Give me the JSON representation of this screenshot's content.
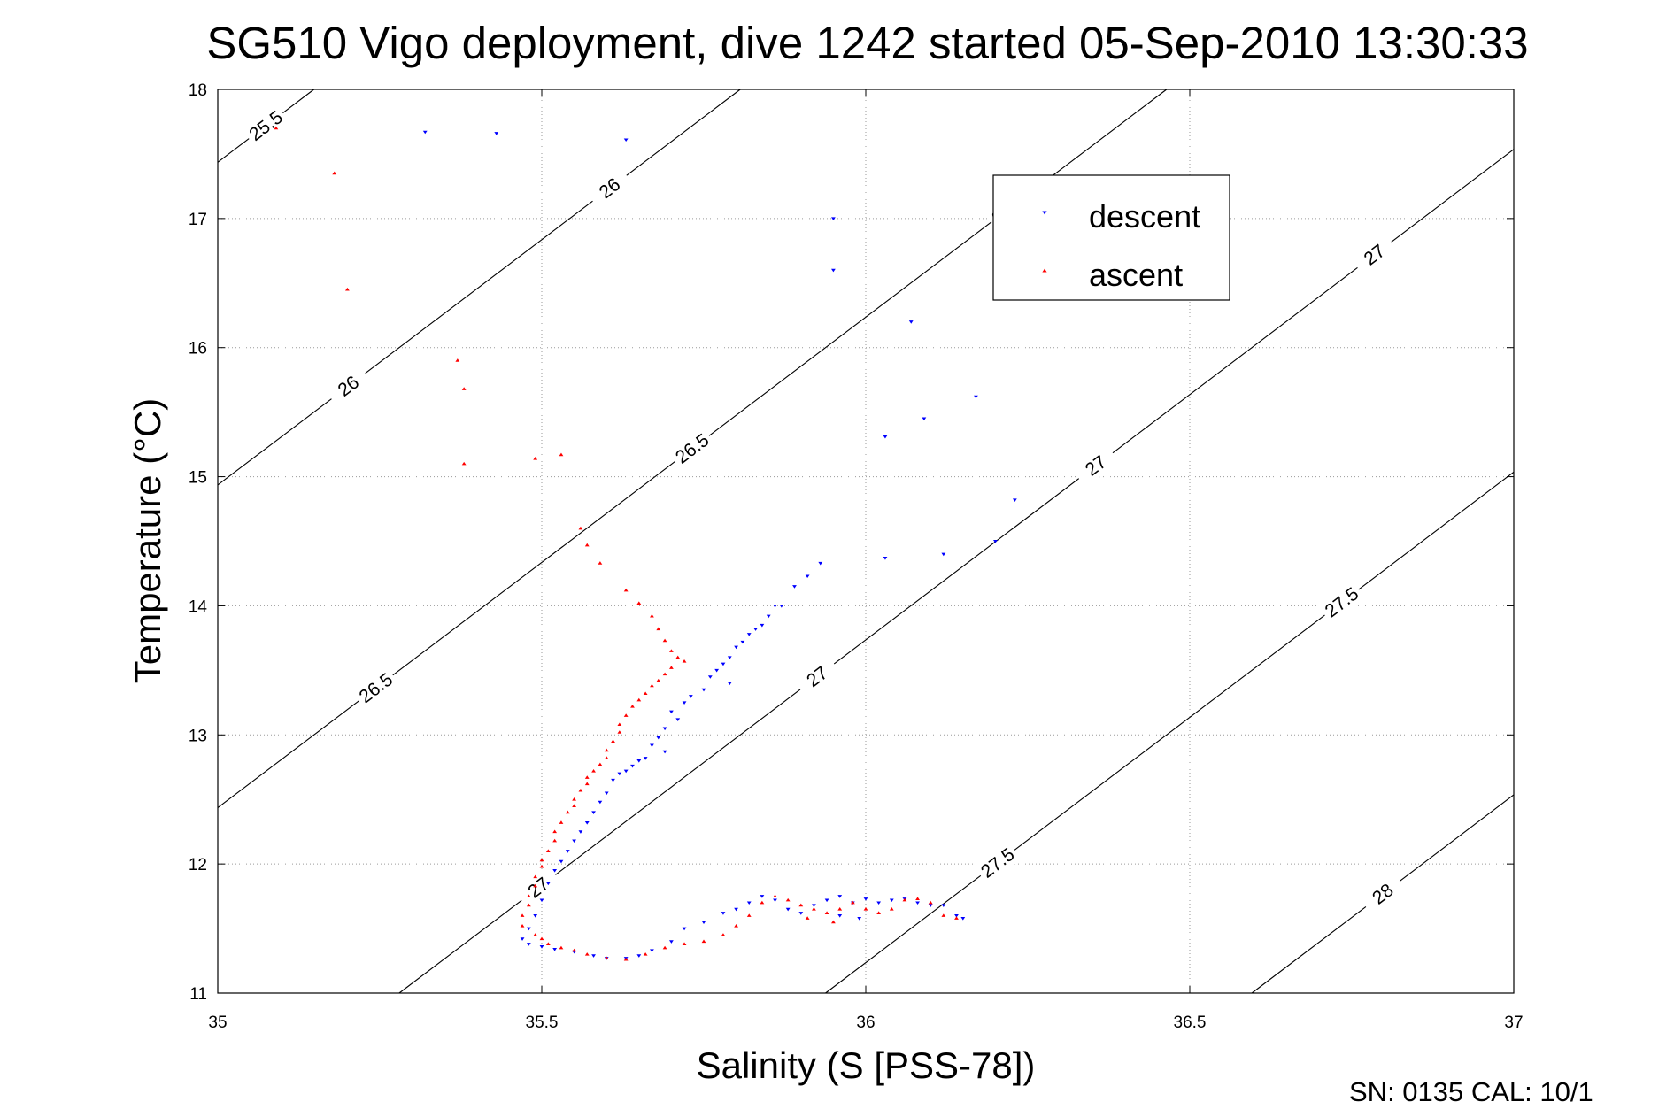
{
  "chart_data": {
    "type": "scatter",
    "title": "SG510 Vigo deployment, dive 1242 started 05-Sep-2010 13:30:33",
    "xlabel": "Salinity (S [PSS-78])",
    "ylabel": "Temperature (°C)",
    "xlim": [
      35,
      37
    ],
    "ylim": [
      11,
      18
    ],
    "xticks": [
      "35",
      "35.5",
      "36",
      "36.5",
      "37"
    ],
    "yticks": [
      "11",
      "12",
      "13",
      "14",
      "15",
      "16",
      "17",
      "18"
    ],
    "grid": true,
    "legend_position": "top-right",
    "footer": "SN: 0135  CAL: 10/1",
    "series": [
      {
        "name": "descent",
        "color": "#0000ff",
        "marker": "triangle-down",
        "points": [
          [
            35.32,
            17.67
          ],
          [
            35.43,
            17.66
          ],
          [
            35.63,
            17.61
          ],
          [
            35.95,
            17.0
          ],
          [
            35.95,
            16.6
          ],
          [
            36.07,
            16.2
          ],
          [
            36.17,
            15.62
          ],
          [
            36.09,
            15.45
          ],
          [
            36.03,
            15.31
          ],
          [
            36.23,
            14.82
          ],
          [
            36.2,
            14.5
          ],
          [
            36.12,
            14.4
          ],
          [
            36.03,
            14.37
          ],
          [
            35.93,
            14.33
          ],
          [
            35.91,
            14.23
          ],
          [
            35.89,
            14.15
          ],
          [
            35.87,
            14.0
          ],
          [
            35.86,
            14.0
          ],
          [
            35.85,
            13.92
          ],
          [
            35.84,
            13.85
          ],
          [
            35.83,
            13.82
          ],
          [
            35.82,
            13.78
          ],
          [
            35.81,
            13.72
          ],
          [
            35.8,
            13.68
          ],
          [
            35.79,
            13.6
          ],
          [
            35.78,
            13.55
          ],
          [
            35.77,
            13.5
          ],
          [
            35.76,
            13.45
          ],
          [
            35.79,
            13.4
          ],
          [
            35.75,
            13.35
          ],
          [
            35.73,
            13.3
          ],
          [
            35.72,
            13.25
          ],
          [
            35.7,
            13.18
          ],
          [
            35.71,
            13.12
          ],
          [
            35.69,
            13.05
          ],
          [
            35.68,
            12.98
          ],
          [
            35.67,
            12.92
          ],
          [
            35.69,
            12.87
          ],
          [
            35.66,
            12.82
          ],
          [
            35.65,
            12.8
          ],
          [
            35.64,
            12.76
          ],
          [
            35.63,
            12.72
          ],
          [
            35.62,
            12.7
          ],
          [
            35.61,
            12.65
          ],
          [
            35.6,
            12.55
          ],
          [
            35.59,
            12.48
          ],
          [
            35.58,
            12.4
          ],
          [
            35.57,
            12.32
          ],
          [
            35.56,
            12.25
          ],
          [
            35.55,
            12.18
          ],
          [
            35.54,
            12.1
          ],
          [
            35.53,
            12.02
          ],
          [
            35.52,
            11.95
          ],
          [
            35.51,
            11.85
          ],
          [
            35.5,
            11.72
          ],
          [
            35.49,
            11.6
          ],
          [
            35.48,
            11.5
          ],
          [
            35.47,
            11.42
          ],
          [
            35.48,
            11.38
          ],
          [
            35.5,
            11.36
          ],
          [
            35.52,
            11.34
          ],
          [
            35.55,
            11.32
          ],
          [
            35.58,
            11.29
          ],
          [
            35.6,
            11.27
          ],
          [
            35.63,
            11.27
          ],
          [
            35.65,
            11.29
          ],
          [
            35.67,
            11.33
          ],
          [
            35.7,
            11.4
          ],
          [
            35.72,
            11.5
          ],
          [
            35.75,
            11.55
          ],
          [
            35.78,
            11.62
          ],
          [
            35.8,
            11.65
          ],
          [
            35.82,
            11.7
          ],
          [
            35.84,
            11.75
          ],
          [
            35.86,
            11.72
          ],
          [
            35.88,
            11.65
          ],
          [
            35.9,
            11.62
          ],
          [
            35.92,
            11.68
          ],
          [
            35.94,
            11.72
          ],
          [
            35.96,
            11.75
          ],
          [
            35.98,
            11.7
          ],
          [
            36.0,
            11.73
          ],
          [
            36.02,
            11.7
          ],
          [
            36.04,
            11.72
          ],
          [
            36.06,
            11.73
          ],
          [
            36.08,
            11.7
          ],
          [
            36.1,
            11.68
          ],
          [
            36.12,
            11.68
          ],
          [
            36.14,
            11.6
          ],
          [
            36.15,
            11.58
          ],
          [
            35.96,
            11.6
          ],
          [
            35.99,
            11.58
          ]
        ]
      },
      {
        "name": "ascent",
        "color": "#ff0000",
        "marker": "triangle-up",
        "points": [
          [
            35.09,
            17.7
          ],
          [
            35.18,
            17.35
          ],
          [
            35.2,
            16.45
          ],
          [
            35.37,
            15.9
          ],
          [
            35.38,
            15.68
          ],
          [
            35.38,
            15.1
          ],
          [
            35.49,
            15.14
          ],
          [
            35.53,
            15.17
          ],
          [
            35.56,
            14.6
          ],
          [
            35.57,
            14.47
          ],
          [
            35.59,
            14.33
          ],
          [
            35.63,
            14.12
          ],
          [
            35.65,
            14.02
          ],
          [
            35.67,
            13.92
          ],
          [
            35.68,
            13.82
          ],
          [
            35.69,
            13.73
          ],
          [
            35.7,
            13.65
          ],
          [
            35.71,
            13.6
          ],
          [
            35.72,
            13.57
          ],
          [
            35.7,
            13.52
          ],
          [
            35.69,
            13.47
          ],
          [
            35.68,
            13.42
          ],
          [
            35.67,
            13.38
          ],
          [
            35.66,
            13.32
          ],
          [
            35.65,
            13.27
          ],
          [
            35.64,
            13.22
          ],
          [
            35.63,
            13.15
          ],
          [
            35.62,
            13.08
          ],
          [
            35.62,
            13.02
          ],
          [
            35.61,
            12.95
          ],
          [
            35.6,
            12.88
          ],
          [
            35.6,
            12.82
          ],
          [
            35.59,
            12.77
          ],
          [
            35.58,
            12.72
          ],
          [
            35.57,
            12.67
          ],
          [
            35.57,
            12.62
          ],
          [
            35.56,
            12.57
          ],
          [
            35.55,
            12.5
          ],
          [
            35.55,
            12.45
          ],
          [
            35.54,
            12.4
          ],
          [
            35.53,
            12.32
          ],
          [
            35.52,
            12.25
          ],
          [
            35.52,
            12.18
          ],
          [
            35.51,
            12.1
          ],
          [
            35.5,
            12.03
          ],
          [
            35.5,
            11.98
          ],
          [
            35.49,
            11.9
          ],
          [
            35.49,
            11.83
          ],
          [
            35.48,
            11.75
          ],
          [
            35.48,
            11.68
          ],
          [
            35.47,
            11.6
          ],
          [
            35.47,
            11.52
          ],
          [
            35.49,
            11.45
          ],
          [
            35.5,
            11.42
          ],
          [
            35.51,
            11.38
          ],
          [
            35.53,
            11.35
          ],
          [
            35.55,
            11.33
          ],
          [
            35.57,
            11.3
          ],
          [
            35.6,
            11.27
          ],
          [
            35.63,
            11.26
          ],
          [
            35.66,
            11.3
          ],
          [
            35.69,
            11.35
          ],
          [
            35.72,
            11.38
          ],
          [
            35.75,
            11.4
          ],
          [
            35.78,
            11.45
          ],
          [
            35.8,
            11.52
          ],
          [
            35.82,
            11.6
          ],
          [
            35.84,
            11.7
          ],
          [
            35.86,
            11.75
          ],
          [
            35.88,
            11.72
          ],
          [
            35.9,
            11.68
          ],
          [
            35.92,
            11.65
          ],
          [
            35.94,
            11.62
          ],
          [
            35.96,
            11.65
          ],
          [
            35.98,
            11.7
          ],
          [
            36.0,
            11.65
          ],
          [
            36.02,
            11.62
          ],
          [
            36.04,
            11.65
          ],
          [
            36.06,
            11.72
          ],
          [
            36.08,
            11.73
          ],
          [
            36.1,
            11.7
          ],
          [
            36.12,
            11.6
          ],
          [
            36.14,
            11.58
          ],
          [
            35.91,
            11.58
          ],
          [
            35.95,
            11.55
          ]
        ]
      }
    ],
    "density_contours": [
      {
        "sigma": 25.5,
        "labels": [
          "25.5"
        ]
      },
      {
        "sigma": 26,
        "labels": [
          "26",
          "26"
        ]
      },
      {
        "sigma": 26.5,
        "labels": [
          "26.5",
          "26.5",
          "26.5"
        ]
      },
      {
        "sigma": 27,
        "labels": [
          "27",
          "27",
          "27",
          "27"
        ]
      },
      {
        "sigma": 27.5,
        "labels": [
          "27.5",
          "27.5"
        ]
      },
      {
        "sigma": 28,
        "labels": [
          "28"
        ]
      }
    ]
  }
}
